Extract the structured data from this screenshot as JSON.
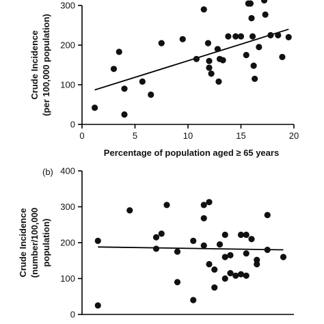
{
  "chart_data": [
    {
      "type": "scatter",
      "panel_label": "",
      "xlabel": "Percentage of population aged ≥ 65 years",
      "ylabel_lines": [
        "Crude Incidence",
        "(per 100,000 population)"
      ],
      "xlim": [
        0,
        20
      ],
      "ylim": [
        0,
        300
      ],
      "xticks": [
        0,
        5,
        10,
        15,
        20
      ],
      "yticks": [
        0,
        100,
        200,
        300
      ],
      "points": [
        {
          "x": 1.2,
          "y": 42
        },
        {
          "x": 3.0,
          "y": 140
        },
        {
          "x": 3.5,
          "y": 183
        },
        {
          "x": 4.0,
          "y": 25
        },
        {
          "x": 4.0,
          "y": 90
        },
        {
          "x": 5.7,
          "y": 108
        },
        {
          "x": 6.5,
          "y": 75
        },
        {
          "x": 7.5,
          "y": 205
        },
        {
          "x": 9.5,
          "y": 215
        },
        {
          "x": 10.8,
          "y": 165
        },
        {
          "x": 11.5,
          "y": 290
        },
        {
          "x": 11.9,
          "y": 205
        },
        {
          "x": 12.0,
          "y": 160
        },
        {
          "x": 12.0,
          "y": 143
        },
        {
          "x": 12.2,
          "y": 128
        },
        {
          "x": 12.8,
          "y": 190
        },
        {
          "x": 12.9,
          "y": 108
        },
        {
          "x": 13.0,
          "y": 165
        },
        {
          "x": 13.3,
          "y": 162
        },
        {
          "x": 13.8,
          "y": 222
        },
        {
          "x": 14.5,
          "y": 222
        },
        {
          "x": 15.0,
          "y": 222
        },
        {
          "x": 15.5,
          "y": 175
        },
        {
          "x": 15.7,
          "y": 305
        },
        {
          "x": 15.9,
          "y": 305
        },
        {
          "x": 16.0,
          "y": 268
        },
        {
          "x": 16.1,
          "y": 222
        },
        {
          "x": 16.2,
          "y": 148
        },
        {
          "x": 16.3,
          "y": 115
        },
        {
          "x": 16.7,
          "y": 195
        },
        {
          "x": 17.2,
          "y": 313
        },
        {
          "x": 17.3,
          "y": 277
        },
        {
          "x": 17.8,
          "y": 225
        },
        {
          "x": 18.5,
          "y": 225
        },
        {
          "x": 18.9,
          "y": 170
        },
        {
          "x": 19.5,
          "y": 220
        }
      ],
      "trend": {
        "x": [
          1.2,
          19.5
        ],
        "y": [
          87,
          240
        ]
      }
    },
    {
      "type": "scatter",
      "panel_label": "(b)",
      "xlabel": "",
      "ylabel_lines": [
        "Crude Incidence",
        "(number/100,000",
        "population)"
      ],
      "xlim": [
        1970,
        2010
      ],
      "ylim": [
        0,
        400
      ],
      "xticks": [],
      "yticks": [
        0,
        100,
        200,
        300,
        400
      ],
      "points": [
        {
          "x": 1973,
          "y": 205
        },
        {
          "x": 1973,
          "y": 25
        },
        {
          "x": 1979,
          "y": 290
        },
        {
          "x": 1984,
          "y": 215
        },
        {
          "x": 1984,
          "y": 183
        },
        {
          "x": 1985,
          "y": 225
        },
        {
          "x": 1986,
          "y": 305
        },
        {
          "x": 1988,
          "y": 90
        },
        {
          "x": 1988,
          "y": 175
        },
        {
          "x": 1991,
          "y": 205
        },
        {
          "x": 1991,
          "y": 40
        },
        {
          "x": 1993,
          "y": 192
        },
        {
          "x": 1993,
          "y": 268
        },
        {
          "x": 1993,
          "y": 305
        },
        {
          "x": 1994,
          "y": 313
        },
        {
          "x": 1994,
          "y": 140
        },
        {
          "x": 1995,
          "y": 75
        },
        {
          "x": 1995,
          "y": 125
        },
        {
          "x": 1996,
          "y": 195
        },
        {
          "x": 1997,
          "y": 222
        },
        {
          "x": 1997,
          "y": 160
        },
        {
          "x": 1997,
          "y": 100
        },
        {
          "x": 1998,
          "y": 115
        },
        {
          "x": 1998,
          "y": 165
        },
        {
          "x": 1999,
          "y": 108
        },
        {
          "x": 2000,
          "y": 222
        },
        {
          "x": 2000,
          "y": 112
        },
        {
          "x": 2001,
          "y": 222
        },
        {
          "x": 2001,
          "y": 170
        },
        {
          "x": 2001,
          "y": 108
        },
        {
          "x": 2002,
          "y": 210
        },
        {
          "x": 2003,
          "y": 140
        },
        {
          "x": 2003,
          "y": 152
        },
        {
          "x": 2005,
          "y": 277
        },
        {
          "x": 2005,
          "y": 180
        },
        {
          "x": 2008,
          "y": 160
        }
      ],
      "trend": {
        "x": [
          1973,
          2008
        ],
        "y": [
          188,
          180
        ]
      }
    }
  ]
}
